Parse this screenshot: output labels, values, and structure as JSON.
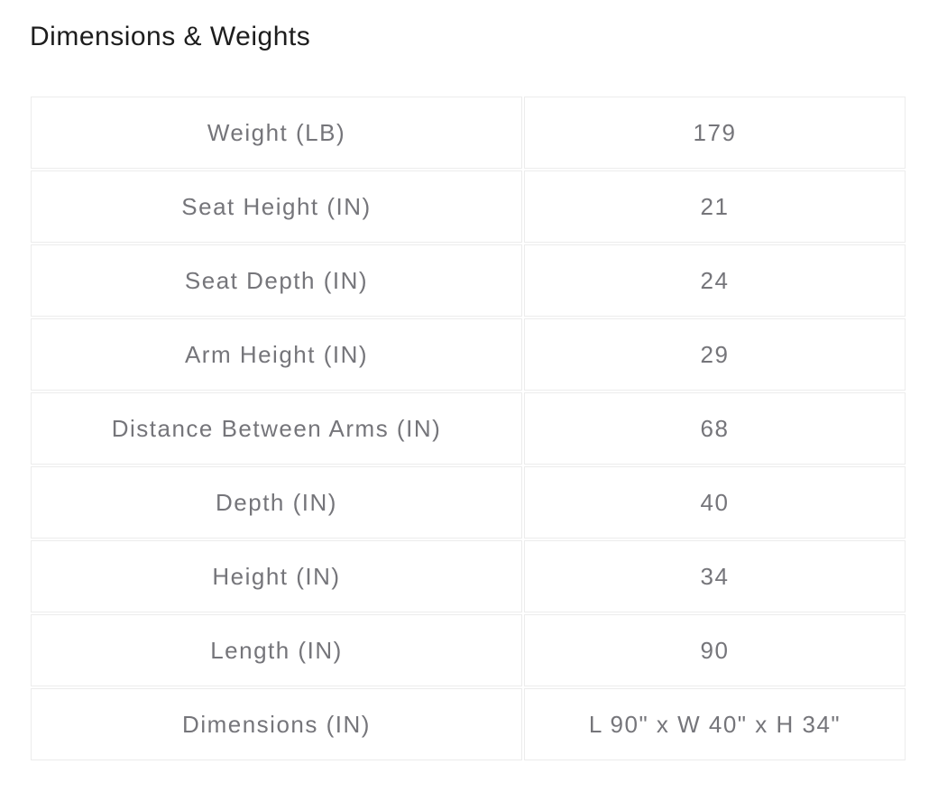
{
  "header": {
    "title": "Dimensions & Weights"
  },
  "colors": {
    "title_text": "#1d1d1d",
    "cell_text": "#75757a",
    "cell_border": "#ececec",
    "background": "#ffffff"
  },
  "table": {
    "rows": [
      {
        "label": "Weight (LB)",
        "value": "179"
      },
      {
        "label": "Seat Height (IN)",
        "value": "21"
      },
      {
        "label": "Seat Depth (IN)",
        "value": "24"
      },
      {
        "label": "Arm Height (IN)",
        "value": "29"
      },
      {
        "label": "Distance Between Arms (IN)",
        "value": "68"
      },
      {
        "label": "Depth (IN)",
        "value": "40"
      },
      {
        "label": "Height (IN)",
        "value": "34"
      },
      {
        "label": "Length (IN)",
        "value": "90"
      },
      {
        "label": "Dimensions (IN)",
        "value": "L 90\" x W 40\" x H 34\""
      }
    ]
  }
}
